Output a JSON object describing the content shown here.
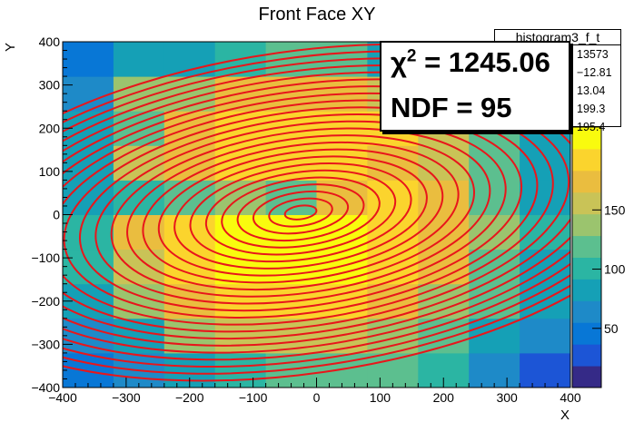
{
  "chart_data": {
    "type": "heatmap",
    "title": "Front Face XY",
    "xlabel": "X",
    "ylabel": "Y",
    "xlim": [
      -400,
      400
    ],
    "ylim": [
      -400,
      400
    ],
    "x_ticks": [
      "−400",
      "−300",
      "−200",
      "−100",
      "0",
      "100",
      "200",
      "300",
      "400"
    ],
    "y_ticks": [
      "−400",
      "−300",
      "−200",
      "−100",
      "0",
      "100",
      "200",
      "300",
      "400"
    ],
    "colorbar_ticks": [
      "50",
      "100",
      "150"
    ],
    "zlim": [
      0,
      220
    ],
    "x_edges": [
      -400,
      -320,
      -240,
      -160,
      -80,
      0,
      80,
      160,
      240,
      320,
      400
    ],
    "y_edges": [
      -400,
      -320,
      -240,
      -160,
      -80,
      0,
      80,
      160,
      240,
      320,
      400
    ],
    "values": [
      [
        40,
        60,
        90,
        100,
        115,
        110,
        120,
        95,
        60,
        35
      ],
      [
        60,
        85,
        130,
        150,
        160,
        150,
        145,
        110,
        90,
        55
      ],
      [
        80,
        130,
        170,
        185,
        190,
        185,
        170,
        145,
        110,
        80
      ],
      [
        95,
        150,
        190,
        205,
        215,
        205,
        185,
        165,
        120,
        90
      ],
      [
        100,
        170,
        195,
        210,
        218,
        212,
        190,
        175,
        130,
        95
      ],
      [
        80,
        105,
        120,
        130,
        120,
        180,
        190,
        170,
        125,
        90
      ],
      [
        90,
        150,
        175,
        190,
        195,
        200,
        180,
        160,
        120,
        90
      ],
      [
        80,
        120,
        175,
        190,
        195,
        195,
        185,
        160,
        120,
        85
      ],
      [
        70,
        140,
        140,
        180,
        180,
        180,
        160,
        130,
        110,
        80
      ],
      [
        40,
        80,
        80,
        100,
        110,
        110,
        90,
        80,
        60,
        50
      ]
    ],
    "fit_function": "2D gaussian",
    "fit_contours": true,
    "stats": {
      "name": "histogram3_f_t",
      "entries": "13573",
      "mean_x": "−12.81",
      "mean_y": "13.04",
      "std_x": "199.3",
      "std_y": "195.4"
    },
    "fit": {
      "chi2_label": "χ",
      "chi2_sup": "2",
      "chi2_value": "= 1245.06",
      "ndf_text": "NDF = 95"
    }
  },
  "colors": {
    "fit_line": "#e8161b",
    "palette": [
      "#352a87",
      "#1c55d6",
      "#0877d6",
      "#1e8ac8",
      "#15a0b6",
      "#2bb5a3",
      "#5cbf8f",
      "#9bc46e",
      "#c9c357",
      "#eabd3f",
      "#fbd42d",
      "#f9fb0e"
    ]
  }
}
